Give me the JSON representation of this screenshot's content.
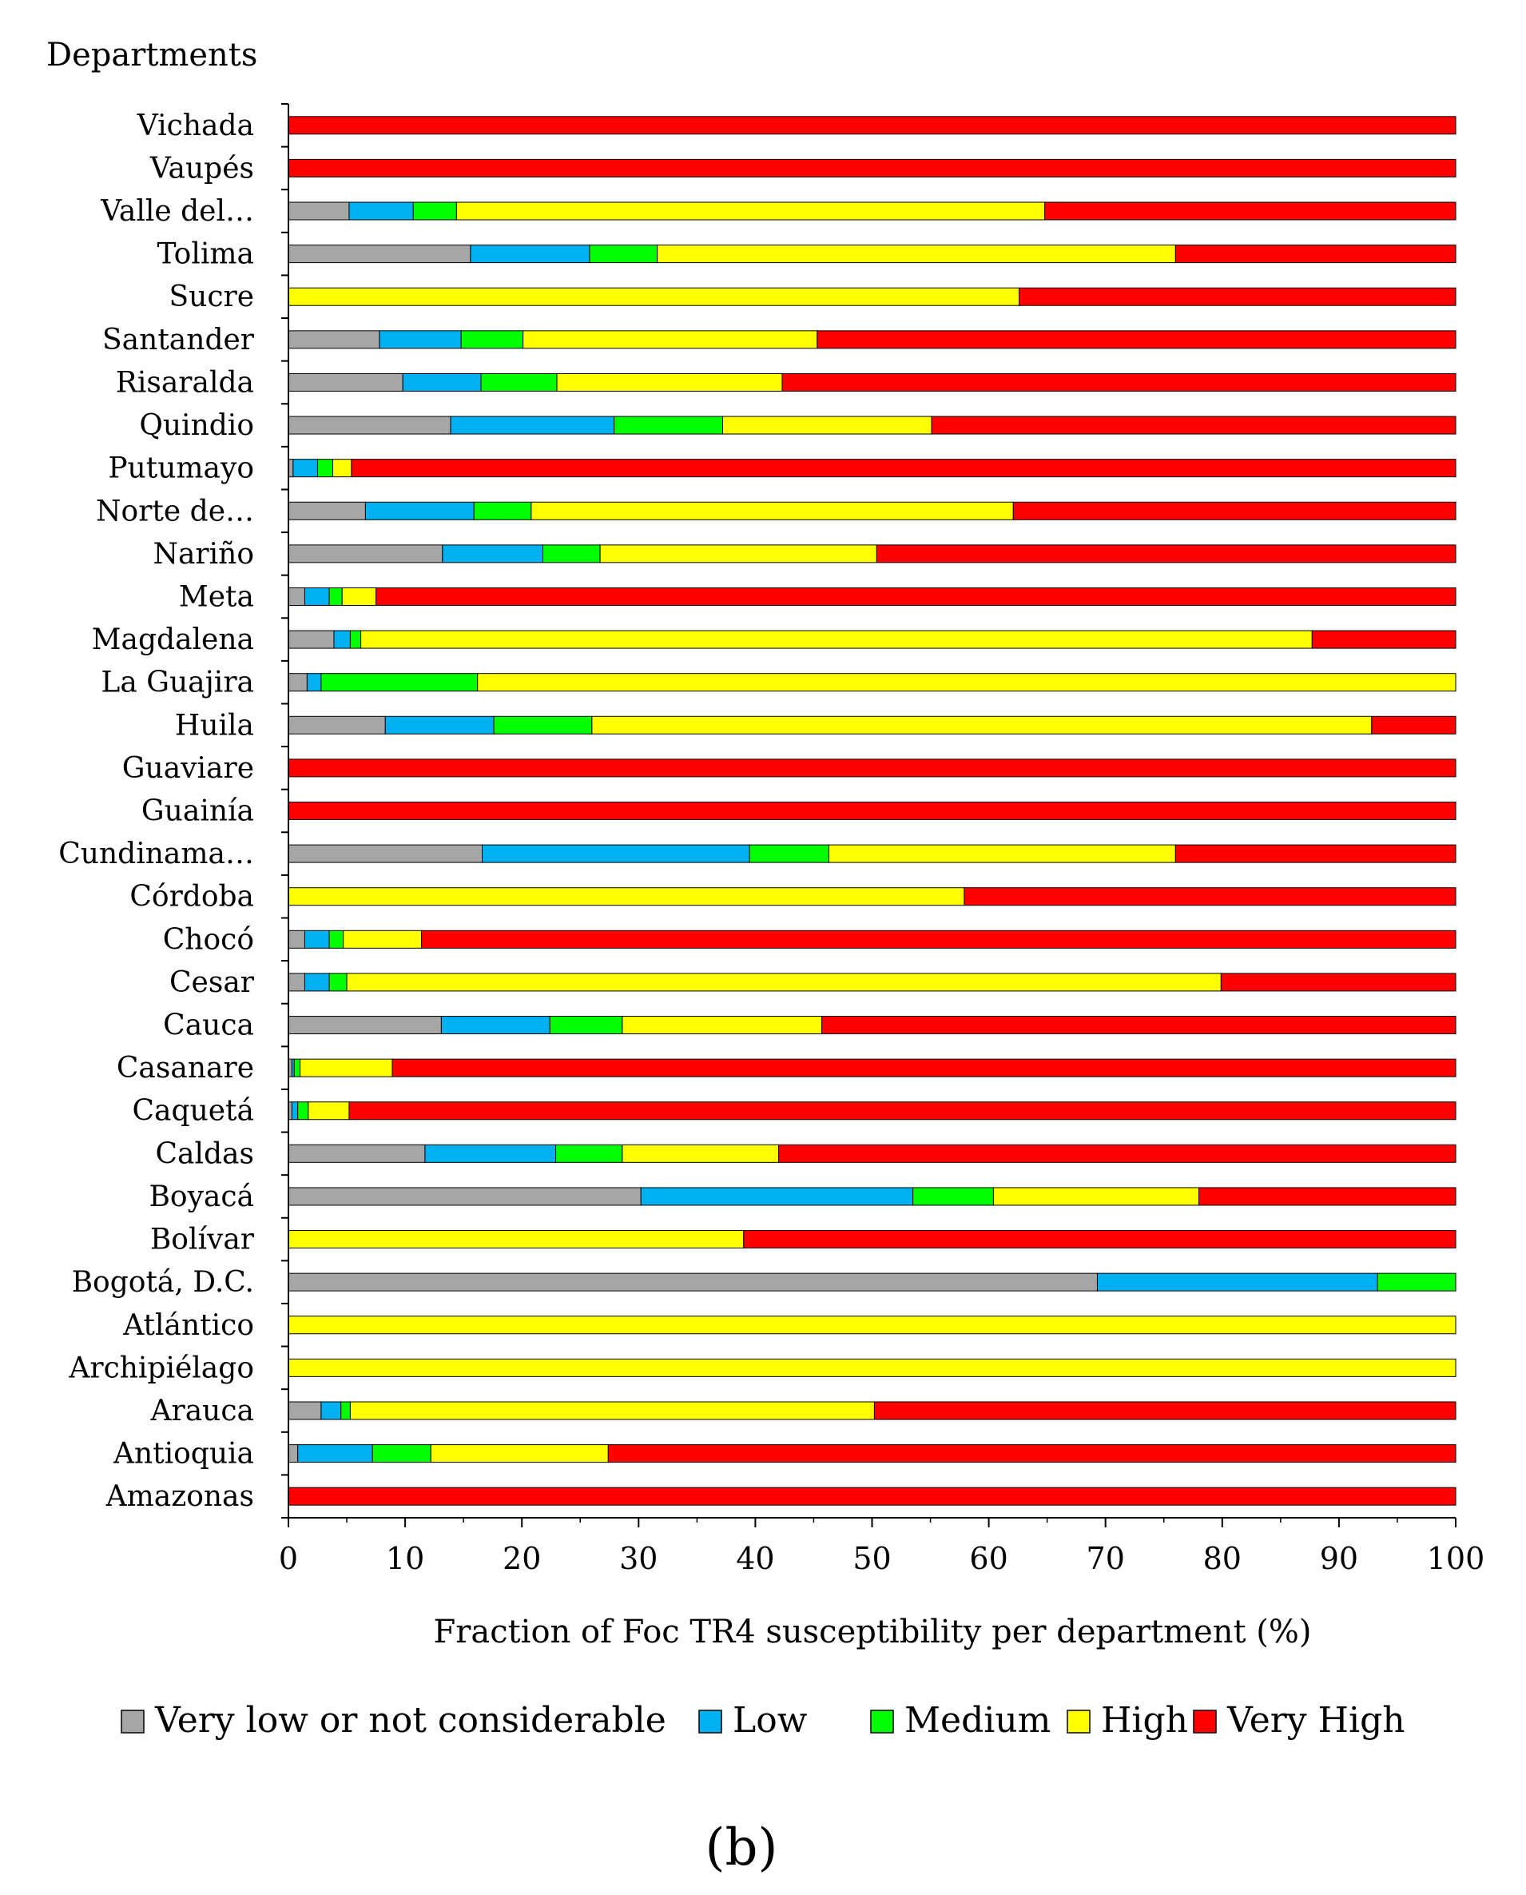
{
  "panel_label": "(b)",
  "chart_data": {
    "type": "bar",
    "orientation": "horizontal",
    "stacked": true,
    "title": "",
    "xlabel": "Fraction of Foc TR4 susceptibility per department (%)",
    "ylabel": "Departments",
    "xlim": [
      0,
      100
    ],
    "xticks": [
      0,
      10,
      20,
      30,
      40,
      50,
      60,
      70,
      80,
      90,
      100
    ],
    "grid": false,
    "legend_position": "bottom",
    "categories": [
      "Vichada",
      "Vaupés",
      "Valle del…",
      "Tolima",
      "Sucre",
      "Santander",
      "Risaralda",
      "Quindio",
      "Putumayo",
      "Norte de…",
      "Nariño",
      "Meta",
      "Magdalena",
      "La Guajira",
      "Huila",
      "Guaviare",
      "Guainía",
      "Cundinama…",
      "Córdoba",
      "Chocó",
      "Cesar",
      "Cauca",
      "Casanare",
      "Caquetá",
      "Caldas",
      "Boyacá",
      "Bolívar",
      "Bogotá, D.C.",
      "Atlántico",
      "Archipiélago",
      "Arauca",
      "Antioquia",
      "Amazonas"
    ],
    "series": [
      {
        "name": "Very low or not considerable",
        "color": "#a6a6a6",
        "values": [
          0,
          0,
          5.2,
          15.6,
          0,
          7.8,
          9.8,
          13.9,
          0.4,
          6.6,
          13.2,
          1.4,
          3.9,
          1.6,
          8.3,
          0,
          0,
          16.6,
          0,
          1.4,
          1.4,
          13.1,
          0.3,
          0.3,
          11.7,
          30.2,
          0,
          69.3,
          0,
          0,
          2.8,
          0.8,
          0
        ]
      },
      {
        "name": "Low",
        "color": "#00b0f0",
        "values": [
          0,
          0,
          5.5,
          10.2,
          0,
          7.0,
          6.7,
          14.0,
          2.1,
          9.3,
          8.6,
          2.1,
          1.4,
          1.2,
          9.3,
          0,
          0,
          22.9,
          0,
          2.1,
          2.1,
          9.3,
          0.2,
          0.5,
          11.2,
          23.3,
          0,
          24.0,
          0,
          0,
          1.7,
          6.4,
          0
        ]
      },
      {
        "name": "Medium",
        "color": "#00ff00",
        "values": [
          0,
          0,
          3.7,
          5.8,
          0,
          5.3,
          6.5,
          9.3,
          1.3,
          4.9,
          4.9,
          1.1,
          0.9,
          13.4,
          8.4,
          0,
          0,
          6.8,
          0,
          1.2,
          1.5,
          6.2,
          0.5,
          0.9,
          5.7,
          6.9,
          0,
          6.7,
          0,
          0,
          0.8,
          5.0,
          0
        ]
      },
      {
        "name": "High",
        "color": "#ffff00",
        "values": [
          0,
          0,
          50.4,
          44.4,
          62.6,
          25.2,
          19.3,
          17.9,
          1.6,
          41.3,
          23.7,
          2.9,
          81.5,
          83.8,
          66.8,
          0,
          0,
          29.7,
          57.9,
          6.7,
          74.9,
          17.1,
          7.9,
          3.5,
          13.4,
          17.6,
          39.0,
          0,
          100,
          100,
          44.9,
          15.2,
          0
        ]
      },
      {
        "name": "Very High",
        "color": "#ff0000",
        "values": [
          100,
          100,
          35.2,
          24.0,
          37.4,
          54.7,
          57.7,
          44.9,
          94.6,
          37.9,
          49.6,
          92.5,
          12.3,
          0,
          7.2,
          100,
          100,
          24.0,
          42.1,
          88.6,
          20.1,
          54.3,
          91.1,
          94.8,
          58.0,
          22.0,
          61.0,
          0,
          0,
          0,
          49.8,
          72.6,
          100
        ]
      }
    ]
  }
}
